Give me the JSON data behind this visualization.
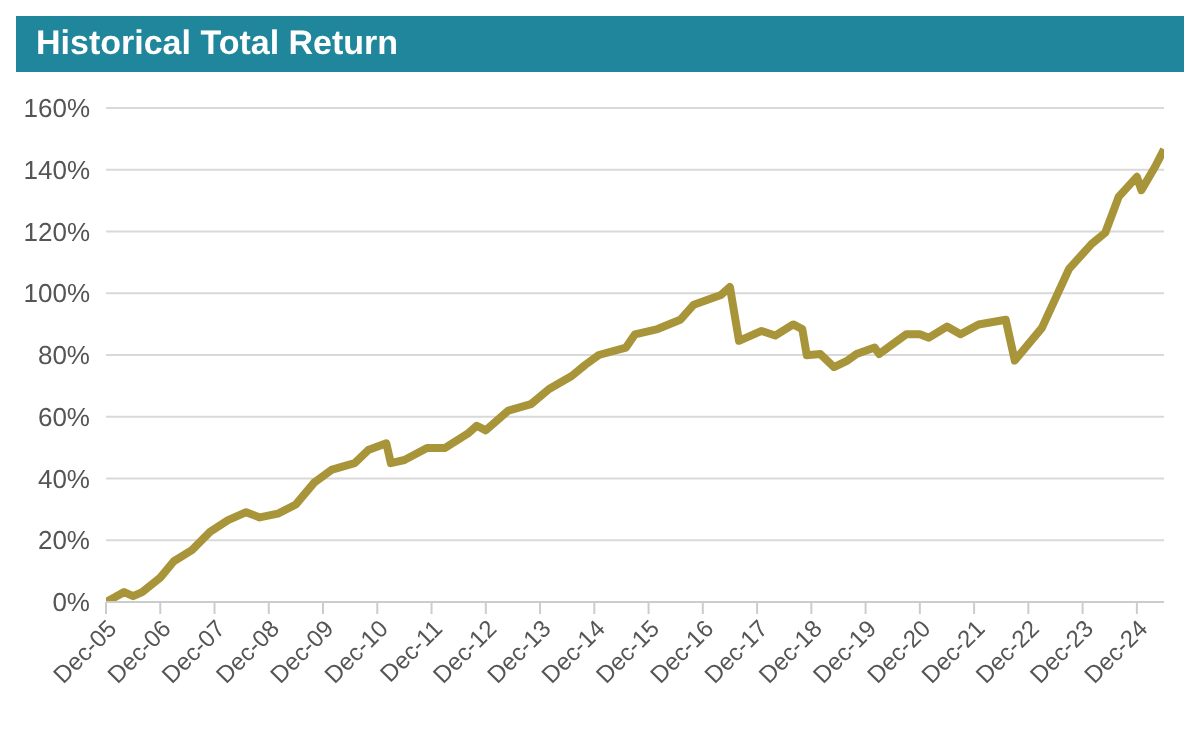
{
  "chart_data": {
    "type": "line",
    "title": "Historical Total Return",
    "x": [
      "2005-12",
      "2006-04",
      "2006-06",
      "2006-08",
      "2006-12",
      "2007-03",
      "2007-07",
      "2007-11",
      "2008-03",
      "2008-07",
      "2008-10",
      "2009-02",
      "2009-06",
      "2009-10",
      "2010-02",
      "2010-07",
      "2010-10",
      "2011-02",
      "2011-03",
      "2011-06",
      "2011-11",
      "2012-03",
      "2012-08",
      "2012-10",
      "2012-12",
      "2013-05",
      "2013-10",
      "2014-02",
      "2014-07",
      "2014-10",
      "2015-01",
      "2015-07",
      "2015-09",
      "2016-02",
      "2016-07",
      "2016-10",
      "2017-04",
      "2017-06",
      "2017-08",
      "2018-01",
      "2018-04",
      "2018-08",
      "2018-10",
      "2018-11",
      "2019-02",
      "2019-05",
      "2019-08",
      "2019-10",
      "2020-02",
      "2020-03",
      "2020-09",
      "2020-12",
      "2021-02",
      "2021-06",
      "2021-09",
      "2022-01",
      "2022-07",
      "2022-09",
      "2023-03",
      "2023-09",
      "2024-02",
      "2024-05",
      "2024-08",
      "2024-12",
      "2025-01",
      "2025-04",
      "2025-06"
    ],
    "series": [
      {
        "color": "#a8953a",
        "values": [
          0,
          3.2,
          1.9,
          3.2,
          7.9,
          13.2,
          16.8,
          22.7,
          26.5,
          29.1,
          27.4,
          28.6,
          31.6,
          38.6,
          42.9,
          45,
          49.2,
          51.4,
          45,
          46,
          49.9,
          49.9,
          54.5,
          57.1,
          55.6,
          62,
          64.1,
          69,
          73.2,
          76.8,
          80,
          82.4,
          86.7,
          88.4,
          91.4,
          96.3,
          99.4,
          102,
          84.6,
          87.8,
          86.3,
          89.9,
          88.4,
          79.9,
          80.3,
          76.1,
          78.2,
          80.3,
          82.4,
          80.3,
          86.7,
          86.7,
          85.6,
          89.2,
          86.7,
          89.9,
          91.4,
          78.2,
          88.8,
          107.9,
          116,
          119.6,
          131.3,
          137.7,
          133.4,
          140.9,
          146.6
        ]
      }
    ],
    "xlim": [
      "2005-12",
      "2025-06"
    ],
    "xticks": [
      {
        "value": "2005-12",
        "label": "Dec-05"
      },
      {
        "value": "2006-12",
        "label": "Dec-06"
      },
      {
        "value": "2007-12",
        "label": "Dec-07"
      },
      {
        "value": "2008-12",
        "label": "Dec-08"
      },
      {
        "value": "2009-12",
        "label": "Dec-09"
      },
      {
        "value": "2010-12",
        "label": "Dec-10"
      },
      {
        "value": "2011-12",
        "label": "Dec-11"
      },
      {
        "value": "2012-12",
        "label": "Dec-12"
      },
      {
        "value": "2013-12",
        "label": "Dec-13"
      },
      {
        "value": "2014-12",
        "label": "Dec-14"
      },
      {
        "value": "2015-12",
        "label": "Dec-15"
      },
      {
        "value": "2016-12",
        "label": "Dec-16"
      },
      {
        "value": "2017-12",
        "label": "Dec-17"
      },
      {
        "value": "2018-12",
        "label": "Dec-18"
      },
      {
        "value": "2019-12",
        "label": "Dec-19"
      },
      {
        "value": "2020-12",
        "label": "Dec-20"
      },
      {
        "value": "2021-12",
        "label": "Dec-21"
      },
      {
        "value": "2022-12",
        "label": "Dec-22"
      },
      {
        "value": "2023-12",
        "label": "Dec-23"
      },
      {
        "value": "2024-12",
        "label": "Dec-24"
      }
    ],
    "ylim": [
      0,
      160
    ],
    "yticks": [
      {
        "value": 0,
        "label": "0%"
      },
      {
        "value": 20,
        "label": "20%"
      },
      {
        "value": 40,
        "label": "40%"
      },
      {
        "value": 60,
        "label": "60%"
      },
      {
        "value": 80,
        "label": "80%"
      },
      {
        "value": 100,
        "label": "100%"
      },
      {
        "value": 120,
        "label": "120%"
      },
      {
        "value": 140,
        "label": "140%"
      },
      {
        "value": 160,
        "label": "160%"
      }
    ],
    "grid": "y",
    "legend": false,
    "marker": "none",
    "line_style": "solid"
  }
}
